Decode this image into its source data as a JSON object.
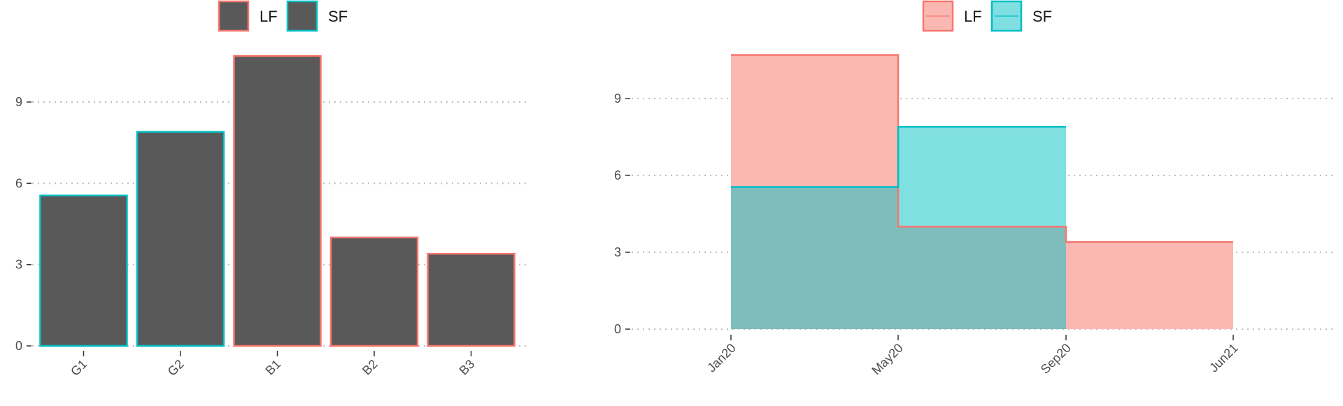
{
  "colors": {
    "lf": "#F8766D",
    "sf": "#00BFC4",
    "bar_fill": "#595959",
    "lf_area": "#FBB8B3",
    "sf_area": "#7FDFE1",
    "overlap_area": "#7FBDBD",
    "grid": "#BEBEBE"
  },
  "chart_data": [
    {
      "type": "bar",
      "title": "",
      "xlabel": "",
      "ylabel": "",
      "categories": [
        "G1",
        "G2",
        "B1",
        "B2",
        "B3"
      ],
      "values": [
        5.55,
        7.9,
        10.7,
        4.0,
        3.4
      ],
      "groups": [
        "SF",
        "SF",
        "LF",
        "LF",
        "LF"
      ],
      "yticks": [
        0,
        3,
        6,
        9
      ],
      "ylim": [
        0,
        11.1
      ],
      "grid": "horizontal-dotted",
      "legend": {
        "placement": "top",
        "entries": [
          {
            "label": "LF",
            "color": "#F8766D"
          },
          {
            "label": "SF",
            "color": "#00BFC4"
          }
        ]
      }
    },
    {
      "type": "area",
      "step": true,
      "title": "",
      "xlabel": "",
      "ylabel": "",
      "x_ticks": [
        "Jan20",
        "May20",
        "Sep20",
        "Jun21"
      ],
      "yticks": [
        0,
        3,
        6,
        9
      ],
      "ylim": [
        0,
        11.1
      ],
      "grid": "horizontal-dotted",
      "series": [
        {
          "name": "LF",
          "color": "#F8766D",
          "points": [
            {
              "x": "Jan20",
              "y": 10.7
            },
            {
              "x": "May20",
              "y": 4.0
            },
            {
              "x": "Sep20",
              "y": 3.4
            },
            {
              "x": "Jun21",
              "y": 3.4
            }
          ]
        },
        {
          "name": "SF",
          "color": "#00BFC4",
          "points": [
            {
              "x": "Jan20",
              "y": 5.55
            },
            {
              "x": "May20",
              "y": 7.9
            },
            {
              "x": "Sep20",
              "y": 7.9
            }
          ]
        }
      ],
      "legend": {
        "placement": "top",
        "entries": [
          {
            "label": "LF",
            "color": "#F8766D"
          },
          {
            "label": "SF",
            "color": "#00BFC4"
          }
        ]
      }
    }
  ]
}
